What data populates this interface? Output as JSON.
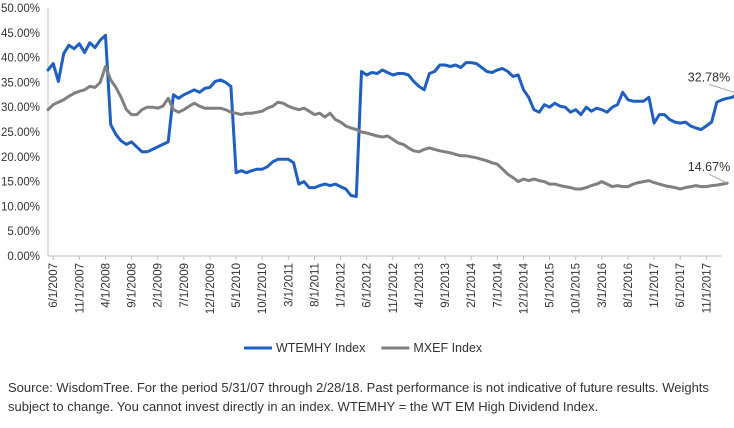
{
  "chart_data": {
    "type": "line",
    "title": "",
    "xlabel": "",
    "ylabel": "",
    "ylim": [
      0,
      50
    ],
    "y_ticks": [
      "0.00%",
      "5.00%",
      "10.00%",
      "15.00%",
      "20.00%",
      "25.00%",
      "30.00%",
      "35.00%",
      "40.00%",
      "45.00%",
      "50.00%"
    ],
    "x_ticks": [
      "6/1/2007",
      "11/1/2007",
      "4/1/2008",
      "9/1/2008",
      "2/1/2009",
      "7/1/2009",
      "12/1/2009",
      "5/1/2010",
      "10/1/2010",
      "3/1/2011",
      "8/1/2011",
      "1/1/2012",
      "6/1/2012",
      "11/1/2012",
      "4/1/2013",
      "9/1/2013",
      "2/1/2014",
      "7/1/2014",
      "12/1/2014",
      "5/1/2015",
      "10/1/2015",
      "3/1/2016",
      "8/1/2016",
      "1/1/2017",
      "6/1/2017",
      "11/1/2017"
    ],
    "x_start": "5/1/2007",
    "x_end": "2/1/2018",
    "grid": false,
    "legend_position": "bottom",
    "series": [
      {
        "name": "WTEMHY Index",
        "color": "#1f5fbf",
        "values": [
          37.5,
          38.8,
          35.2,
          40.8,
          42.5,
          41.8,
          42.8,
          41.0,
          43.0,
          42.0,
          43.5,
          44.5,
          26.5,
          24.5,
          23.2,
          22.5,
          23.0,
          22.0,
          21.0,
          21.0,
          21.5,
          22.0,
          22.5,
          23.0,
          32.5,
          31.8,
          32.5,
          33.0,
          33.5,
          33.0,
          33.8,
          34.0,
          35.2,
          35.5,
          35.0,
          34.2,
          16.8,
          17.2,
          16.8,
          17.2,
          17.5,
          17.5,
          18.0,
          19.0,
          19.5,
          19.5,
          19.5,
          18.8,
          14.5,
          15.0,
          13.8,
          13.8,
          14.2,
          14.5,
          14.2,
          14.5,
          14.0,
          13.5,
          12.2,
          12.0,
          37.2,
          36.5,
          37.0,
          36.8,
          37.5,
          37.0,
          36.5,
          36.8,
          36.8,
          36.5,
          35.2,
          34.2,
          33.5,
          36.8,
          37.2,
          38.5,
          38.5,
          38.2,
          38.5,
          38.0,
          39.0,
          39.0,
          38.8,
          38.0,
          37.2,
          37.0,
          37.5,
          37.8,
          37.2,
          36.2,
          36.5,
          33.5,
          32.0,
          29.5,
          29.0,
          30.5,
          30.0,
          30.8,
          30.2,
          30.0,
          29.0,
          29.5,
          28.5,
          30.0,
          29.2,
          29.8,
          29.5,
          29.0,
          30.0,
          30.5,
          33.0,
          31.5,
          31.2,
          31.2,
          31.2,
          32.0,
          26.8,
          28.5,
          28.5,
          27.5,
          27.0,
          26.8,
          27.0,
          26.2,
          25.8,
          25.5,
          26.2,
          27.0,
          31.0,
          31.5,
          31.8,
          32.0,
          32.78
        ]
      },
      {
        "name": "MXEF Index",
        "color": "#808080",
        "values": [
          29.5,
          30.5,
          31.0,
          31.5,
          32.2,
          32.8,
          33.2,
          33.5,
          34.2,
          34.0,
          35.0,
          38.2,
          35.5,
          34.0,
          32.0,
          29.5,
          28.5,
          28.5,
          29.5,
          30.0,
          30.0,
          29.8,
          30.2,
          31.8,
          29.5,
          29.0,
          29.5,
          30.2,
          30.8,
          30.2,
          29.8,
          29.8,
          29.8,
          29.8,
          29.5,
          29.0,
          28.8,
          28.5,
          28.8,
          28.8,
          29.0,
          29.2,
          29.8,
          30.2,
          31.0,
          30.8,
          30.2,
          29.8,
          29.5,
          29.8,
          29.2,
          28.5,
          28.8,
          28.0,
          28.8,
          27.5,
          27.0,
          26.2,
          25.8,
          25.5,
          25.0,
          24.8,
          24.5,
          24.2,
          24.0,
          24.2,
          23.5,
          22.8,
          22.5,
          21.8,
          21.2,
          21.0,
          21.5,
          21.8,
          21.5,
          21.2,
          21.0,
          20.8,
          20.5,
          20.2,
          20.2,
          20.0,
          19.8,
          19.5,
          19.2,
          18.8,
          18.5,
          17.5,
          16.5,
          15.8,
          15.0,
          15.5,
          15.2,
          15.5,
          15.2,
          15.0,
          14.5,
          14.5,
          14.2,
          14.0,
          13.8,
          13.5,
          13.5,
          13.8,
          14.2,
          14.5,
          15.0,
          14.5,
          14.0,
          14.2,
          14.0,
          14.0,
          14.5,
          14.8,
          15.0,
          15.2,
          14.8,
          14.5,
          14.2,
          14.0,
          13.8,
          13.5,
          13.8,
          14.0,
          14.2,
          14.0,
          14.0,
          14.2,
          14.3,
          14.5,
          14.67
        ]
      }
    ],
    "end_labels": [
      "32.78%",
      "14.67%"
    ]
  },
  "source_note": "Source: WisdomTree. For the period 5/31/07 through 2/28/18. Past performance is not indicative of future results. Weights subject to change. You cannot invest directly in an index. WTEMHY = the WT EM High Dividend Index."
}
